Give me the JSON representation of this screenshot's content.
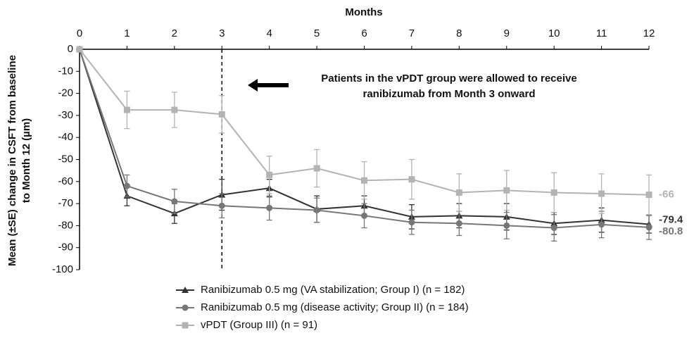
{
  "chart_data": {
    "type": "line",
    "xlabel": "Months",
    "ylabel": [
      "Mean (±SE) change in CSFT from baseline",
      "to Month 12 (µm)"
    ],
    "x": [
      0,
      1,
      2,
      3,
      4,
      5,
      6,
      7,
      8,
      9,
      10,
      11,
      12
    ],
    "xlim": [
      0,
      12
    ],
    "xticks": [
      0,
      1,
      2,
      3,
      4,
      5,
      6,
      7,
      8,
      9,
      10,
      11,
      12
    ],
    "ylim": [
      -100,
      0
    ],
    "yticks": [
      0,
      -10,
      -20,
      -30,
      -40,
      -50,
      -60,
      -70,
      -80,
      -90,
      -100
    ],
    "series": [
      {
        "name": "Ranibizumab 0.5 mg (VA stabilization; Group I) (n = 182)",
        "color": "#333333",
        "marker": "triangle",
        "values": [
          0,
          -66.5,
          -74.5,
          -66,
          -63,
          -72.5,
          -71,
          -76,
          -75.5,
          -76,
          -79,
          -77.5,
          -79.4
        ],
        "error": [
          0,
          4.5,
          4.5,
          7,
          4,
          6,
          4.5,
          5.5,
          5.5,
          6,
          5,
          5.5,
          4
        ]
      },
      {
        "name": "Ranibizumab 0.5 mg (disease activity; Group II) (n = 184)",
        "color": "#777777",
        "marker": "circle",
        "values": [
          0,
          -62,
          -69,
          -71,
          -72,
          -73,
          -75.5,
          -78.5,
          -79,
          -80,
          -81,
          -79.5,
          -80.8
        ],
        "error": [
          0,
          5,
          5.5,
          5.5,
          5.5,
          5.5,
          5.5,
          5.5,
          5.5,
          6,
          6,
          6,
          5.5
        ]
      },
      {
        "name": "vPDT (Group III) (n = 91)",
        "color": "#b3b3b3",
        "marker": "square",
        "values": [
          0,
          -27.5,
          -27.5,
          -29.5,
          -57,
          -54,
          -59.5,
          -59,
          -65,
          -64,
          -65,
          -65.5,
          -66
        ],
        "error": [
          0,
          8.5,
          8,
          8.5,
          8.5,
          8.5,
          8.5,
          9,
          8.5,
          9,
          9,
          9,
          9
        ]
      }
    ],
    "vline_x": 3,
    "annotation": [
      "Patients in the vPDT group were allowed to receive",
      "ranibizumab from Month 3 onward"
    ]
  }
}
